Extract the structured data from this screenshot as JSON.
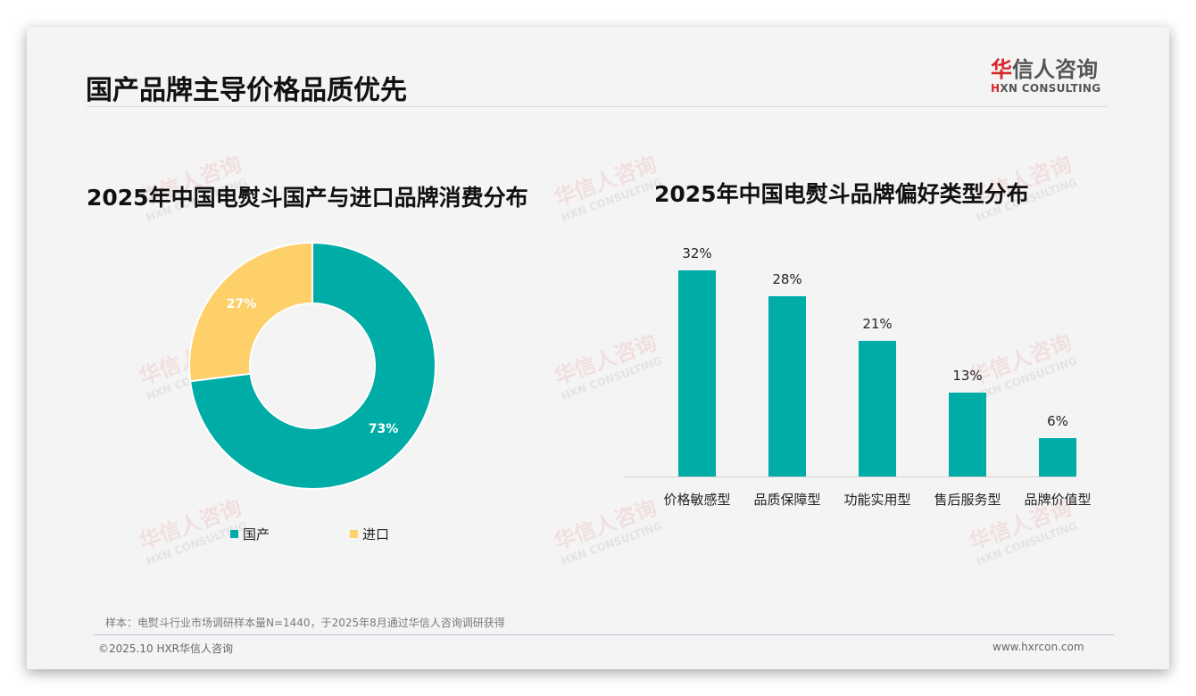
{
  "page": {
    "title": "国产品牌主导价格品质优先"
  },
  "logo": {
    "cn_first": "华",
    "cn_rest": "信人咨询",
    "en_first": "H",
    "en_rest": "XN CONSULTING"
  },
  "watermark": {
    "cn": "华信人咨询",
    "en": "HXN CONSULTING"
  },
  "footer": {
    "note": "样本：电熨斗行业市场调研样本量N=1440，于2025年8月通过华信人咨询调研获得",
    "copyright": "©2025.10 HXR华信人咨询",
    "website": "www.hxrcon.com"
  },
  "colors": {
    "teal": "#00ada6",
    "yellow": "#fdd06a"
  },
  "chart_data": [
    {
      "type": "pie",
      "title": "2025年中国电熨斗国产与进口品牌消费分布",
      "categories": [
        "国产",
        "进口"
      ],
      "values": [
        73,
        27
      ],
      "labels": [
        "73%",
        "27%"
      ],
      "colors": [
        "#00ada6",
        "#fdd06a"
      ],
      "donut": true,
      "legend_position": "bottom"
    },
    {
      "type": "bar",
      "title": "2025年中国电熨斗品牌偏好类型分布",
      "categories": [
        "价格敏感型",
        "品质保障型",
        "功能实用型",
        "售后服务型",
        "品牌价值型"
      ],
      "values": [
        32,
        28,
        21,
        13,
        6
      ],
      "labels": [
        "32%",
        "28%",
        "21%",
        "13%",
        "6%"
      ],
      "color": "#00ada6",
      "xlabel": "",
      "ylabel": "",
      "grid": false
    }
  ]
}
